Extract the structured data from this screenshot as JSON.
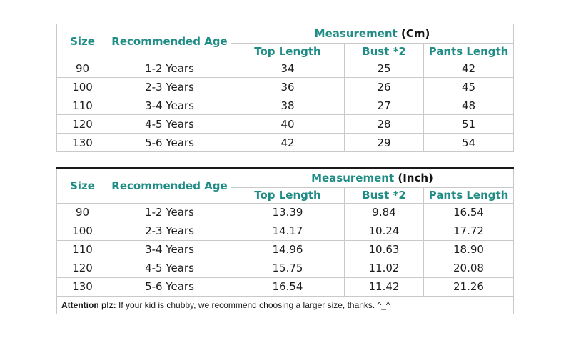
{
  "colors": {
    "header_text": "#1f8c85",
    "body_text": "#1c1c1c",
    "border": "#c9c9c9",
    "inch_table_top_border": "#1a1a1a"
  },
  "columns": {
    "size": "Size",
    "age": "Recommended Age",
    "measurement": "Measurement",
    "top_length": "Top Length",
    "bust": "Bust *2",
    "pants_length": "Pants Length"
  },
  "tables": [
    {
      "measurement_label": "Measurement",
      "unit_label": "(Cm)",
      "rows": [
        {
          "size": "90",
          "age": "1-2 Years",
          "top": "34",
          "bust": "25",
          "pants": "42"
        },
        {
          "size": "100",
          "age": "2-3 Years",
          "top": "36",
          "bust": "26",
          "pants": "45"
        },
        {
          "size": "110",
          "age": "3-4 Years",
          "top": "38",
          "bust": "27",
          "pants": "48"
        },
        {
          "size": "120",
          "age": "4-5 Years",
          "top": "40",
          "bust": "28",
          "pants": "51"
        },
        {
          "size": "130",
          "age": "5-6 Years",
          "top": "42",
          "bust": "29",
          "pants": "54"
        }
      ]
    },
    {
      "measurement_label": "Measurement",
      "unit_label": "(Inch)",
      "rows": [
        {
          "size": "90",
          "age": "1-2 Years",
          "top": "13.39",
          "bust": "9.84",
          "pants": "16.54"
        },
        {
          "size": "100",
          "age": "2-3 Years",
          "top": "14.17",
          "bust": "10.24",
          "pants": "17.72"
        },
        {
          "size": "110",
          "age": "3-4 Years",
          "top": "14.96",
          "bust": "10.63",
          "pants": "18.90"
        },
        {
          "size": "120",
          "age": "4-5 Years",
          "top": "15.75",
          "bust": "11.02",
          "pants": "20.08"
        },
        {
          "size": "130",
          "age": "5-6 Years",
          "top": "16.54",
          "bust": "11.42",
          "pants": "21.26"
        }
      ]
    }
  ],
  "note": {
    "label": "Attention plz:",
    "text": " If your kid is chubby, we recommend choosing a larger size, thanks. ^_^"
  }
}
